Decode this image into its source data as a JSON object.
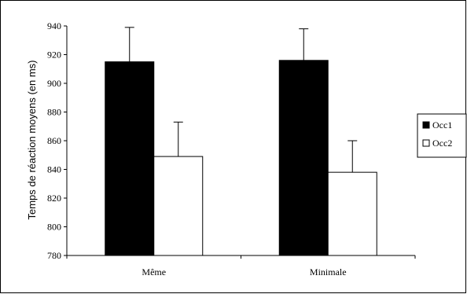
{
  "chart_data": {
    "type": "bar",
    "categories": [
      "Même",
      "Minimale"
    ],
    "series": [
      {
        "name": "Occ1",
        "color": "#000000",
        "values": [
          915,
          916
        ],
        "errors": [
          24,
          22
        ]
      },
      {
        "name": "Occ2",
        "color": "#ffffff",
        "values": [
          849,
          838
        ],
        "errors": [
          24,
          22
        ]
      }
    ],
    "ylabel": "Temps de réaction moyens (en ms)",
    "xlabel": "",
    "ylim": [
      780,
      940
    ],
    "yticks": [
      780,
      800,
      820,
      840,
      860,
      880,
      900,
      920,
      940
    ],
    "grid": false,
    "legend_position": "right"
  }
}
